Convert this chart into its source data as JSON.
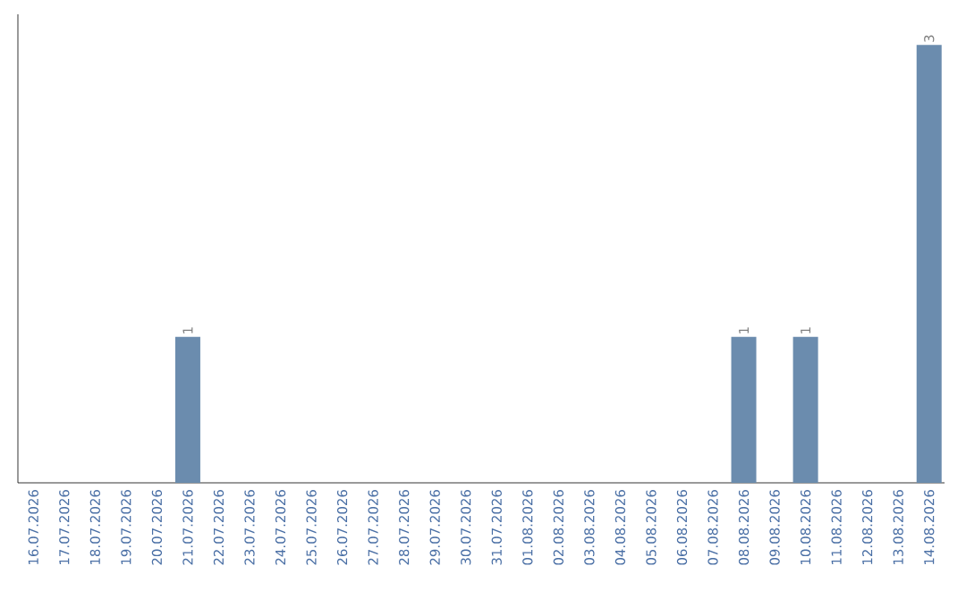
{
  "chart_data": {
    "type": "bar",
    "categories": [
      "16.07.2026",
      "17.07.2026",
      "18.07.2026",
      "19.07.2026",
      "20.07.2026",
      "21.07.2026",
      "22.07.2026",
      "23.07.2026",
      "24.07.2026",
      "25.07.2026",
      "26.07.2026",
      "27.07.2026",
      "28.07.2026",
      "29.07.2026",
      "30.07.2026",
      "31.07.2026",
      "01.08.2026",
      "02.08.2026",
      "03.08.2026",
      "04.08.2026",
      "05.08.2026",
      "06.08.2026",
      "07.08.2026",
      "08.08.2026",
      "09.08.2026",
      "10.08.2026",
      "11.08.2026",
      "12.08.2026",
      "13.08.2026",
      "14.08.2026"
    ],
    "values": [
      0,
      0,
      0,
      0,
      0,
      1,
      0,
      0,
      0,
      0,
      0,
      0,
      0,
      0,
      0,
      0,
      0,
      0,
      0,
      0,
      0,
      0,
      0,
      1,
      0,
      1,
      0,
      0,
      0,
      3
    ],
    "value_labels": [
      null,
      null,
      null,
      null,
      null,
      "1",
      null,
      null,
      null,
      null,
      null,
      null,
      null,
      null,
      null,
      null,
      null,
      null,
      null,
      null,
      null,
      null,
      null,
      "1",
      null,
      "1",
      null,
      null,
      null,
      "3"
    ],
    "color": "#6b8cae"
  }
}
